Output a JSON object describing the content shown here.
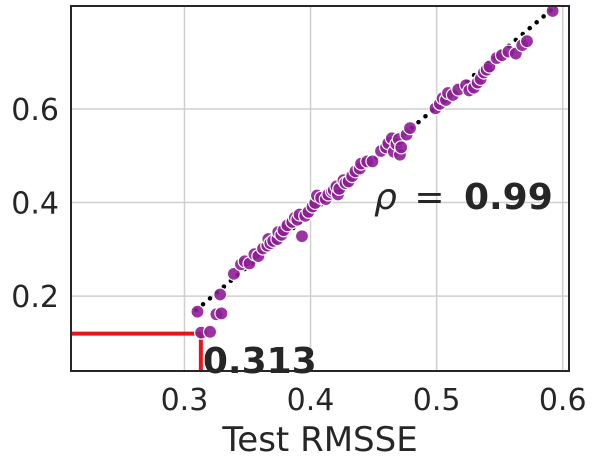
{
  "chart_data": {
    "type": "scatter",
    "title": "",
    "xlabel": "Test RMSSE",
    "ylabel": "",
    "xlim": [
      0.21,
      0.605
    ],
    "ylim": [
      0.04,
      0.82
    ],
    "xticks": [
      0.3,
      0.4,
      0.5,
      0.6
    ],
    "xtick_labels": [
      "0.3",
      "0.4",
      "0.5",
      "0.6"
    ],
    "yticks": [
      0.2,
      0.4,
      0.6
    ],
    "ytick_labels": [
      "0.2",
      "0.4",
      "0.6"
    ],
    "grid": true,
    "colors": {
      "points": "#8e1e96",
      "point_edge": "#ffffff",
      "fit_line": "#000000",
      "callout": "#e8141b",
      "grid": "#cfcfcf",
      "axis": "#262626"
    },
    "points": [
      [
        0.3103,
        0.1667
      ],
      [
        0.3132,
        0.122
      ],
      [
        0.3203,
        0.1237
      ],
      [
        0.3253,
        0.1612
      ],
      [
        0.3293,
        0.1631
      ],
      [
        0.3283,
        0.2035
      ],
      [
        0.3392,
        0.2476
      ],
      [
        0.3448,
        0.2679
      ],
      [
        0.3478,
        0.2744
      ],
      [
        0.3516,
        0.2697
      ],
      [
        0.3555,
        0.2896
      ],
      [
        0.3586,
        0.2856
      ],
      [
        0.3623,
        0.3018
      ],
      [
        0.3657,
        0.3079
      ],
      [
        0.3665,
        0.322
      ],
      [
        0.3681,
        0.313
      ],
      [
        0.3704,
        0.318
      ],
      [
        0.3737,
        0.322
      ],
      [
        0.3744,
        0.3371
      ],
      [
        0.3768,
        0.3309
      ],
      [
        0.3786,
        0.3408
      ],
      [
        0.3816,
        0.3514
      ],
      [
        0.3855,
        0.3585
      ],
      [
        0.3876,
        0.3676
      ],
      [
        0.3895,
        0.3634
      ],
      [
        0.3913,
        0.3744
      ],
      [
        0.3932,
        0.328
      ],
      [
        0.3958,
        0.3716
      ],
      [
        0.3984,
        0.3802
      ],
      [
        0.4016,
        0.3916
      ],
      [
        0.4037,
        0.3991
      ],
      [
        0.4051,
        0.4149
      ],
      [
        0.4084,
        0.4101
      ],
      [
        0.4121,
        0.4073
      ],
      [
        0.4141,
        0.4173
      ],
      [
        0.417,
        0.4235
      ],
      [
        0.4184,
        0.4265
      ],
      [
        0.4205,
        0.4345
      ],
      [
        0.4217,
        0.4173
      ],
      [
        0.4228,
        0.4293
      ],
      [
        0.4261,
        0.4479
      ],
      [
        0.4277,
        0.4417
      ],
      [
        0.4302,
        0.4451
      ],
      [
        0.433,
        0.4565
      ],
      [
        0.4356,
        0.4668
      ],
      [
        0.439,
        0.4727
      ],
      [
        0.4401,
        0.4832
      ],
      [
        0.4449,
        0.4879
      ],
      [
        0.4491,
        0.4879
      ],
      [
        0.4559,
        0.5102
      ],
      [
        0.4599,
        0.518
      ],
      [
        0.4617,
        0.5268
      ],
      [
        0.4645,
        0.5373
      ],
      [
        0.4661,
        0.5085
      ],
      [
        0.4681,
        0.5251
      ],
      [
        0.47,
        0.5354
      ],
      [
        0.4709,
        0.5023
      ],
      [
        0.4719,
        0.518
      ],
      [
        0.4762,
        0.5453
      ],
      [
        0.4789,
        0.5591
      ],
      [
        0.4991,
        0.6013
      ],
      [
        0.5026,
        0.611
      ],
      [
        0.5047,
        0.6228
      ],
      [
        0.5074,
        0.6193
      ],
      [
        0.509,
        0.6341
      ],
      [
        0.5129,
        0.6298
      ],
      [
        0.5172,
        0.6415
      ],
      [
        0.5234,
        0.6507
      ],
      [
        0.5259,
        0.6394
      ],
      [
        0.5296,
        0.6453
      ],
      [
        0.5325,
        0.6563
      ],
      [
        0.5349,
        0.6641
      ],
      [
        0.5375,
        0.6779
      ],
      [
        0.5397,
        0.6838
      ],
      [
        0.5419,
        0.6906
      ],
      [
        0.5476,
        0.7088
      ],
      [
        0.5518,
        0.7149
      ],
      [
        0.557,
        0.7226
      ],
      [
        0.5628,
        0.7184
      ],
      [
        0.5679,
        0.7364
      ],
      [
        0.5717,
        0.7449
      ],
      [
        0.592,
        0.8094
      ]
    ],
    "fit_line": {
      "x": [
        0.3092,
        0.5907
      ],
      "y": [
        0.17,
        0.811
      ],
      "style": "dotted"
    },
    "annotation": {
      "symbol": "ρ",
      "equals": "=",
      "value": "0.99"
    },
    "callout": {
      "x": 0.313,
      "y": 0.12,
      "label": "0.313"
    }
  }
}
